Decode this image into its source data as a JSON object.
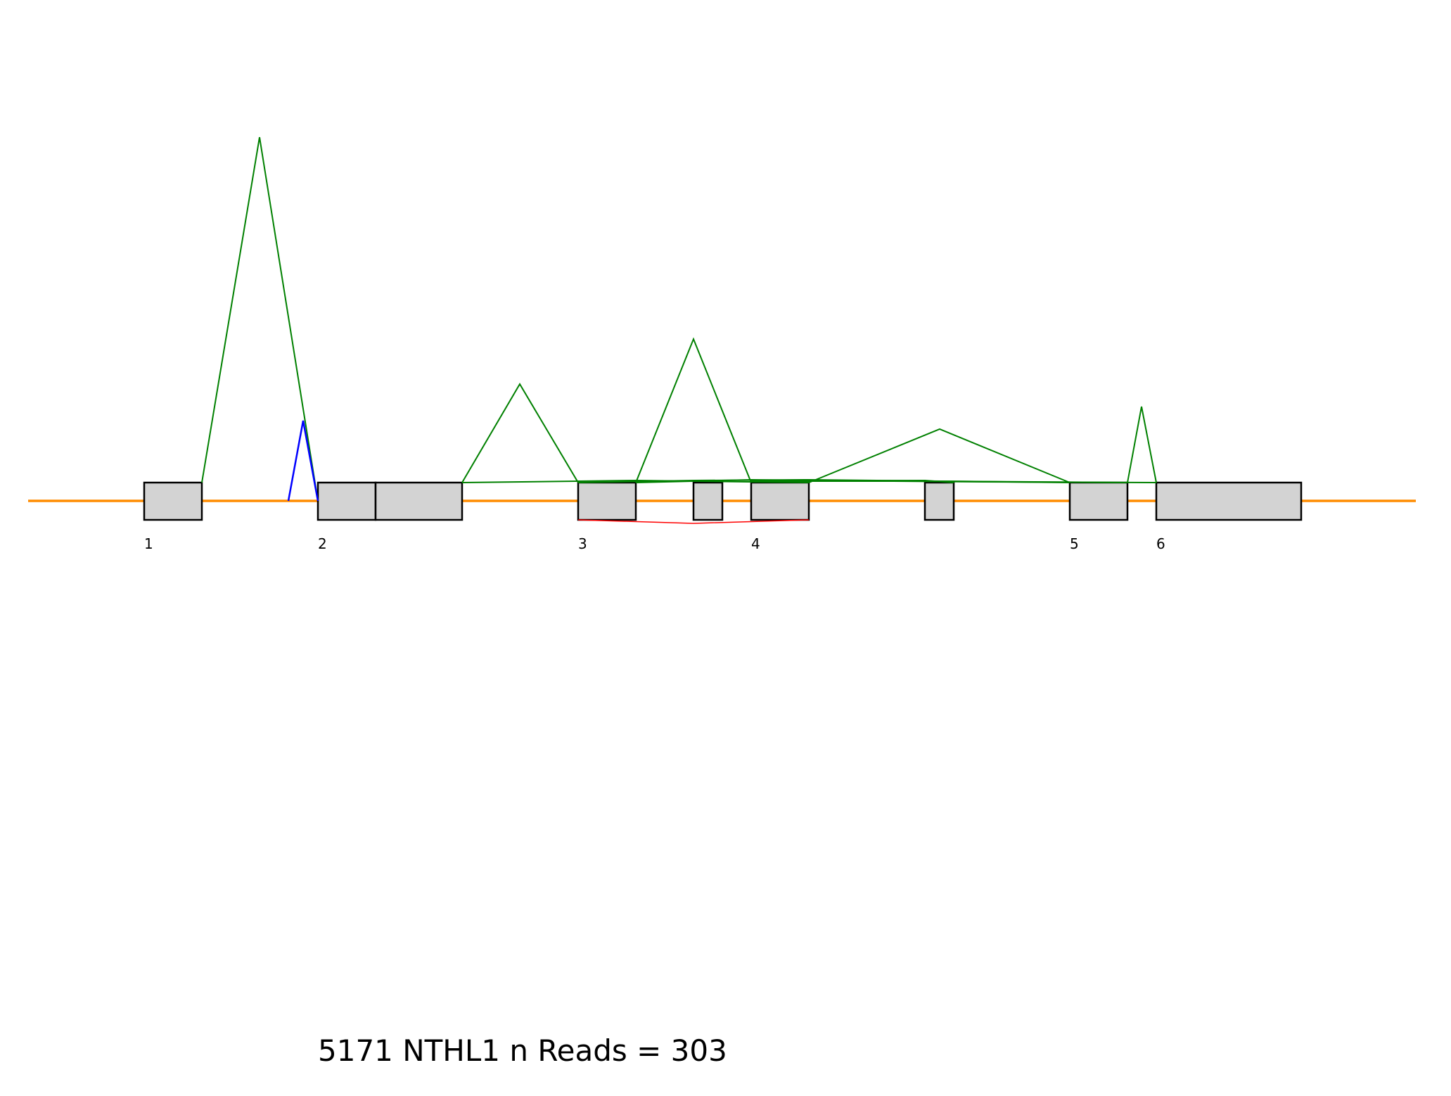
{
  "title": "5171 NTHL1 n Reads = 303",
  "colors": {
    "intron_line": "#ff8c00",
    "exon_fill": "#d3d3d3",
    "exon_stroke": "#000000",
    "junction_green": "#008000",
    "junction_blue": "#0000ff",
    "junction_red": "#ff0000"
  },
  "exon_labels": [
    "1",
    "2",
    "3",
    "4",
    "5",
    "6"
  ]
}
